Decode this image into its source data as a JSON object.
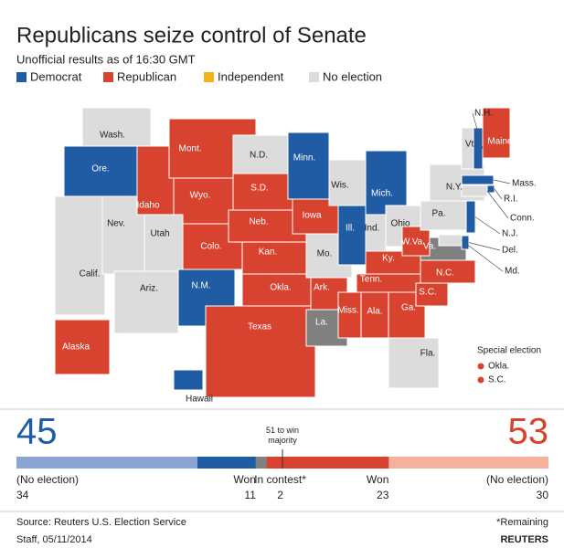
{
  "title": "Republicans seize control of Senate",
  "subtitle": "Unofficial results as of 16:30 GMT",
  "legend": [
    {
      "name": "Democrat",
      "color": "#1f5ca4"
    },
    {
      "name": "Republican",
      "color": "#d8432f"
    },
    {
      "name": "Independent",
      "color": "#f2b21c"
    },
    {
      "name": "No election",
      "color": "#dcdcdc"
    }
  ],
  "states": [
    {
      "label": "Wash.",
      "color": "#dcdcdc"
    },
    {
      "label": "Ore.",
      "color": "#1f5ca4"
    },
    {
      "label": "Calif.",
      "color": "#dcdcdc"
    },
    {
      "label": "Nev.",
      "color": "#dcdcdc"
    },
    {
      "label": "Idaho",
      "color": "#d8432f"
    },
    {
      "label": "Mont.",
      "color": "#d8432f"
    },
    {
      "label": "Wyo.",
      "color": "#d8432f"
    },
    {
      "label": "Utah",
      "color": "#dcdcdc"
    },
    {
      "label": "Ariz.",
      "color": "#dcdcdc"
    },
    {
      "label": "Colo.",
      "color": "#d8432f"
    },
    {
      "label": "N.M.",
      "color": "#1f5ca4"
    },
    {
      "label": "N.D.",
      "color": "#dcdcdc"
    },
    {
      "label": "S.D.",
      "color": "#d8432f"
    },
    {
      "label": "Neb.",
      "color": "#d8432f"
    },
    {
      "label": "Kan.",
      "color": "#d8432f"
    },
    {
      "label": "Okla.",
      "color": "#d8432f"
    },
    {
      "label": "Texas",
      "color": "#d8432f"
    },
    {
      "label": "Minn.",
      "color": "#1f5ca4"
    },
    {
      "label": "Iowa",
      "color": "#d8432f"
    },
    {
      "label": "Mo.",
      "color": "#dcdcdc"
    },
    {
      "label": "Ark.",
      "color": "#d8432f"
    },
    {
      "label": "La.",
      "color": "#808080"
    },
    {
      "label": "Wis.",
      "color": "#dcdcdc"
    },
    {
      "label": "Ill.",
      "color": "#1f5ca4"
    },
    {
      "label": "Mich.",
      "color": "#1f5ca4"
    },
    {
      "label": "Ind.",
      "color": "#dcdcdc"
    },
    {
      "label": "Ohio",
      "color": "#dcdcdc"
    },
    {
      "label": "Ky.",
      "color": "#d8432f"
    },
    {
      "label": "Tenn.",
      "color": "#d8432f"
    },
    {
      "label": "Miss.",
      "color": "#d8432f"
    },
    {
      "label": "Ala.",
      "color": "#d8432f"
    },
    {
      "label": "Ga.",
      "color": "#d8432f"
    },
    {
      "label": "Fla.",
      "color": "#dcdcdc"
    },
    {
      "label": "S.C.",
      "color": "#d8432f"
    },
    {
      "label": "N.C.",
      "color": "#d8432f"
    },
    {
      "label": "Va.",
      "color": "#808080"
    },
    {
      "label": "W.Va.",
      "color": "#d8432f"
    },
    {
      "label": "Pa.",
      "color": "#dcdcdc"
    },
    {
      "label": "N.Y.",
      "color": "#dcdcdc"
    },
    {
      "label": "Maine",
      "color": "#d8432f"
    },
    {
      "label": "N.H.",
      "color": "#1f5ca4"
    },
    {
      "label": "Vt.",
      "color": "#dcdcdc"
    },
    {
      "label": "Mass.",
      "color": "#1f5ca4"
    },
    {
      "label": "R.I.",
      "color": "#1f5ca4"
    },
    {
      "label": "Conn.",
      "color": "#dcdcdc"
    },
    {
      "label": "N.J.",
      "color": "#1f5ca4"
    },
    {
      "label": "Del.",
      "color": "#1f5ca4"
    },
    {
      "label": "Md.",
      "color": "#dcdcdc"
    },
    {
      "label": "Alaska",
      "color": "#d8432f"
    },
    {
      "label": "Hawaii",
      "color": "#1f5ca4"
    }
  ],
  "special": {
    "title": "Special election",
    "items": [
      "Okla.",
      "S.C."
    ],
    "color": "#d8432f"
  },
  "totals": {
    "democrat": 45,
    "republican": 53,
    "majority": "51 to win majority"
  },
  "bar": [
    {
      "label": "(No election)",
      "value": 34,
      "color": "#8aa4d4"
    },
    {
      "label": "Won",
      "value": 11,
      "color": "#1f5ca4"
    },
    {
      "label": "In contest*",
      "value": 2,
      "color": "#808080"
    },
    {
      "label": "Won",
      "value": 23,
      "color": "#d8432f"
    },
    {
      "label": "(No election)",
      "value": 30,
      "color": "#f6b19c"
    }
  ],
  "source": "Source: Reuters U.S. Election Service",
  "note": "*Remaining",
  "credit": "Staff, 05/11/2014",
  "brand": "REUTERS"
}
